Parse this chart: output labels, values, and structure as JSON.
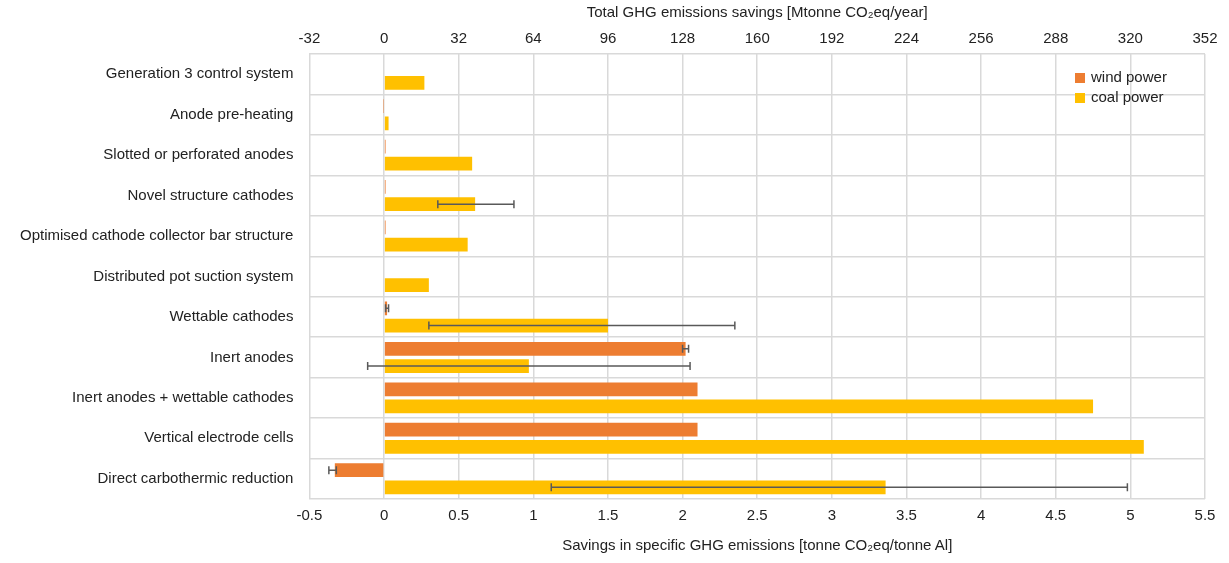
{
  "chart_data": {
    "type": "bar",
    "orientation": "horizontal",
    "categories": [
      "Generation 3 control system",
      "Anode pre-heating",
      "Slotted or perforated anodes",
      "Novel structure cathodes",
      "Optimised cathode collector bar structure",
      "Distributed pot suction system",
      "Wettable cathodes",
      "Inert anodes",
      "Inert anodes + wettable cathodes",
      "Vertical electrode cells",
      "Direct carbothermic reduction"
    ],
    "series": [
      {
        "name": "wind power",
        "color": "#ed7d31",
        "values": [
          null,
          -0.002,
          0.01,
          0.01,
          0.01,
          null,
          0.02,
          2.02,
          2.1,
          2.1,
          -0.33
        ],
        "errors": [
          null,
          null,
          null,
          null,
          null,
          null,
          [
            0.01,
            0.03
          ],
          [
            2.0,
            2.04
          ],
          null,
          null,
          [
            -0.37,
            -0.32
          ]
        ]
      },
      {
        "name": "coal power",
        "color": "#ffc000",
        "values": [
          0.27,
          0.03,
          0.59,
          0.61,
          0.56,
          0.3,
          1.5,
          0.97,
          4.75,
          5.09,
          3.36
        ],
        "errors": [
          null,
          null,
          null,
          [
            0.36,
            0.87
          ],
          null,
          null,
          [
            0.3,
            2.35
          ],
          [
            -0.11,
            2.05
          ],
          null,
          null,
          [
            1.12,
            4.98
          ]
        ]
      }
    ],
    "xlabel": "Savings in specific GHG emissions [tonne CO₂eq/tonne Al]",
    "x2label": "Total GHG emissions savings [Mtonne CO₂eq/year]",
    "xlim": [
      -0.5,
      5.5
    ],
    "xticks": [
      -0.5,
      0,
      0.5,
      1,
      1.5,
      2,
      2.5,
      3,
      3.5,
      4,
      4.5,
      5,
      5.5
    ],
    "x2lim": [
      -32,
      352
    ],
    "x2ticks": [
      -32,
      0,
      32,
      64,
      96,
      128,
      160,
      192,
      224,
      256,
      288,
      320,
      352
    ],
    "grid": true,
    "legend": "top right"
  }
}
